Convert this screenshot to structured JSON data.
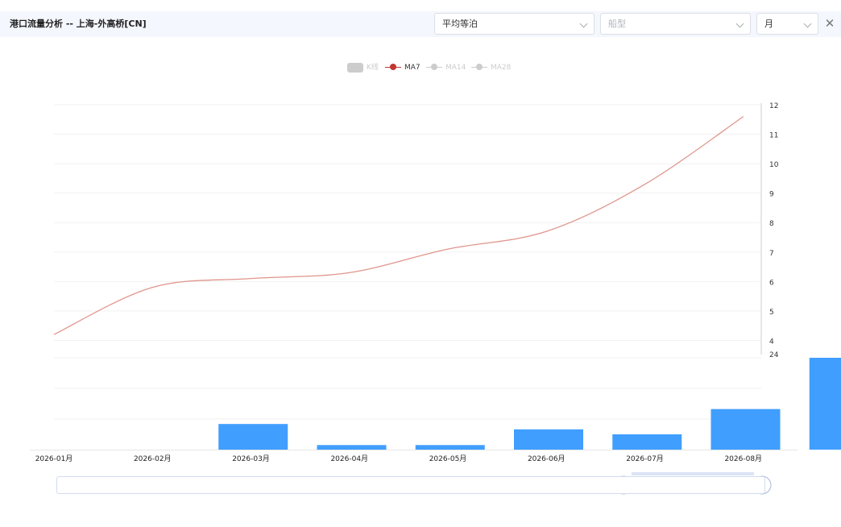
{
  "header": {
    "title": "港口流量分析 -- 上海-外高桥[CN]",
    "metric_select": "平均等泊",
    "ship_type_placeholder": "船型",
    "period_select": "月",
    "close_symbol": "✕"
  },
  "legend": [
    {
      "label": "K线",
      "active": false
    },
    {
      "label": "MA7",
      "active": true
    },
    {
      "label": "MA14",
      "active": false
    },
    {
      "label": "MA28",
      "active": false
    }
  ],
  "colors": {
    "ma7": "#c23531",
    "ma7_line": "#e0958c",
    "bar": "#409eff",
    "inactive": "#cccccc",
    "zoom_fill": "#d2dcf5"
  },
  "chart_data": [
    {
      "type": "line",
      "series": [
        {
          "name": "MA7",
          "x": [
            "2026-01月",
            "2026-02月",
            "2026-03月",
            "2026-04月",
            "2026-05月",
            "2026-06月",
            "2026-07月",
            "2026-08月"
          ],
          "values": [
            4.2,
            5.8,
            6.1,
            6.3,
            7.1,
            7.7,
            9.3,
            11.6
          ]
        }
      ],
      "y_ticks": [
        4,
        5,
        6,
        7,
        8,
        9,
        10,
        11,
        12
      ],
      "ylim": [
        3.3,
        12
      ],
      "y_axis_position": "right",
      "grid": true
    },
    {
      "type": "bar",
      "categories": [
        "2026-01月",
        "2026-02月",
        "2026-03月",
        "2026-04月",
        "2026-05月",
        "2026-06月",
        "2026-07月",
        "2026-08月"
      ],
      "values": [
        0,
        6.7,
        1.2,
        1.2,
        5.3,
        4.0,
        10.6,
        24
      ],
      "y_ticks": [
        24
      ],
      "ylim": [
        0,
        24
      ],
      "grid": true
    }
  ],
  "data_zoom": {
    "start_percent": 80,
    "end_percent": 100
  }
}
